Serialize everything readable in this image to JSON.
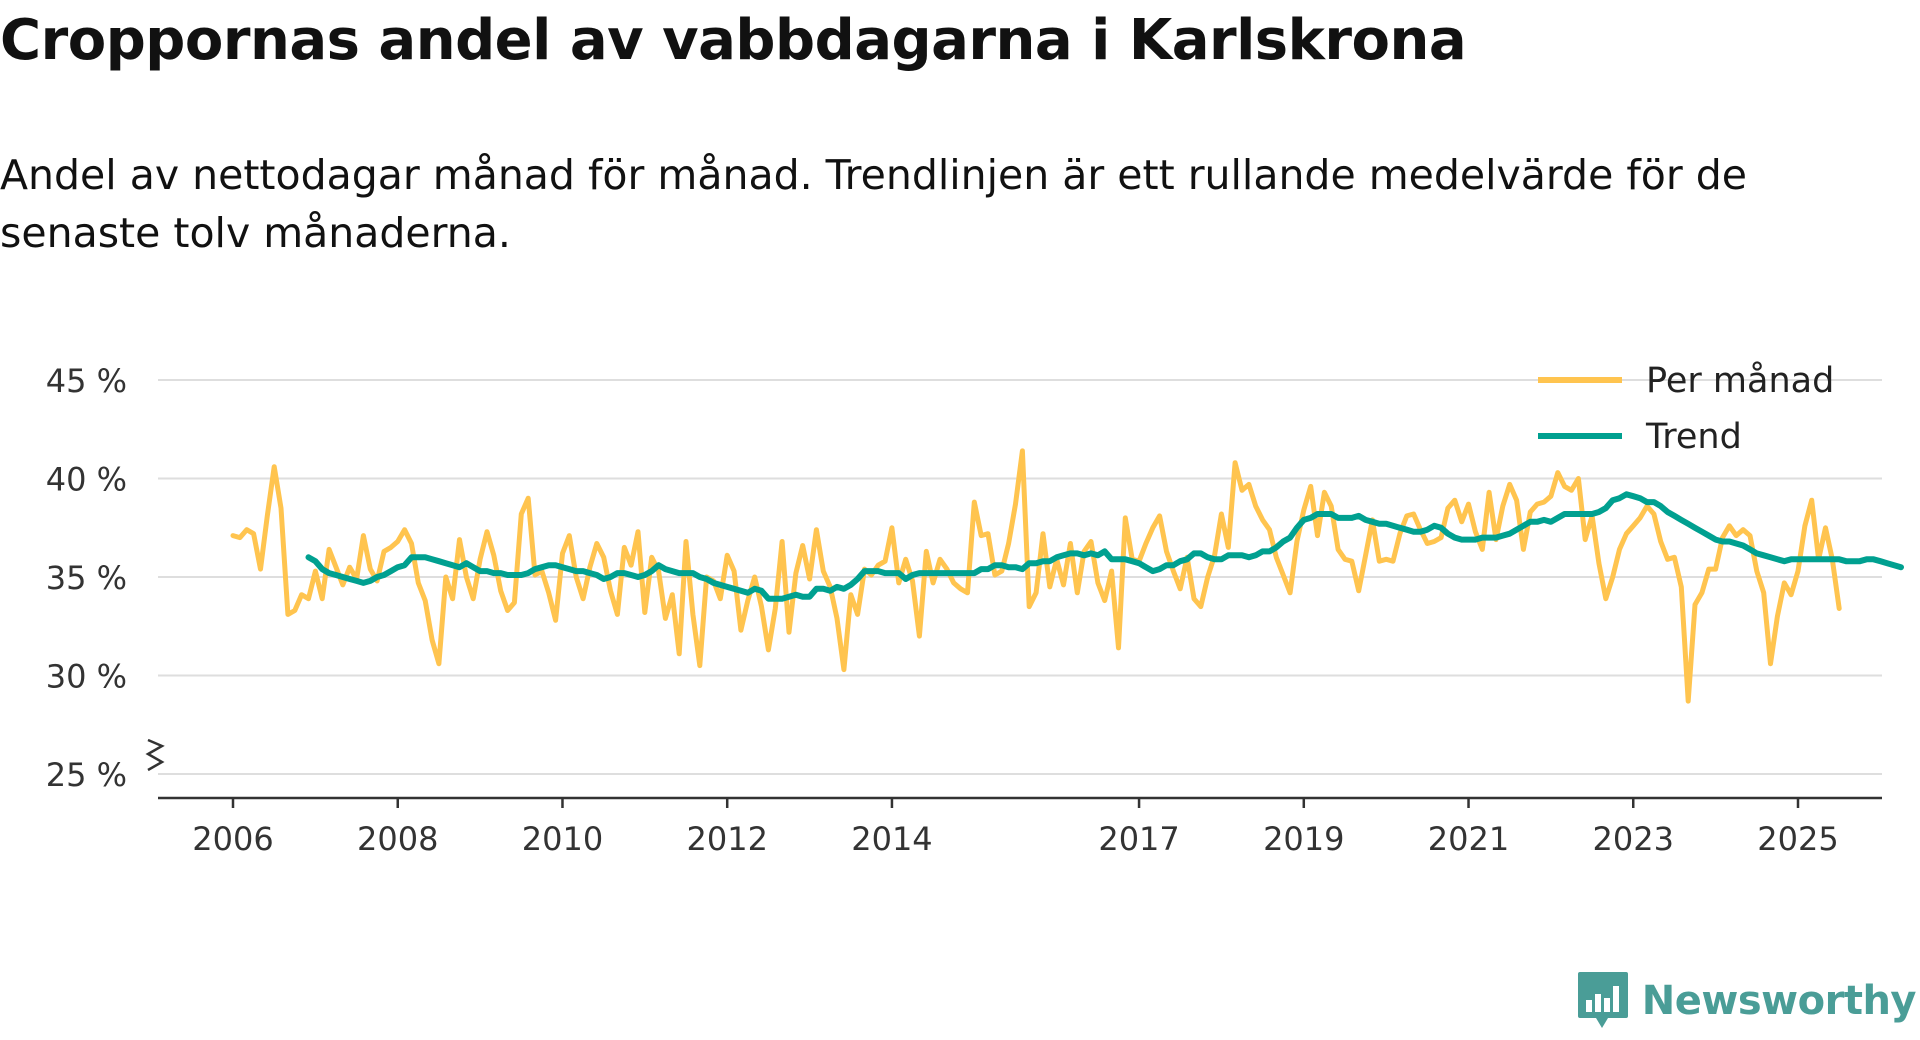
{
  "title": "Croppornas andel av vabbdagarna i Karlskrona",
  "subtitle": "Andel av nettodagar månad för månad. Trendlinjen är ett rullande medelvärde för de senaste tolv månaderna.",
  "brand": {
    "name": "Newsworthy",
    "color": "#4a9d97"
  },
  "colors": {
    "monthly": "#ffc44f",
    "trend": "#00a090",
    "grid": "#dedede",
    "axis": "#333333"
  },
  "chart_data": {
    "type": "line",
    "xlim": [
      2006.0,
      2026.0
    ],
    "ylim": [
      25,
      45
    ],
    "yticks": [
      {
        "value": 25,
        "label": "25 %"
      },
      {
        "value": 30,
        "label": "30 %"
      },
      {
        "value": 35,
        "label": "35 %"
      },
      {
        "value": 40,
        "label": "40 %"
      },
      {
        "value": 45,
        "label": "45 %"
      }
    ],
    "xticks": [
      {
        "value": 2006.0,
        "label": "2006"
      },
      {
        "value": 2008.0,
        "label": "2008"
      },
      {
        "value": 2010.0,
        "label": "2010"
      },
      {
        "value": 2012.0,
        "label": "2012"
      },
      {
        "value": 2014.0,
        "label": "2014"
      },
      {
        "value": 2017.0,
        "label": "2017"
      },
      {
        "value": 2019.0,
        "label": "2019"
      },
      {
        "value": 2021.0,
        "label": "2021"
      },
      {
        "value": 2023.0,
        "label": "2023"
      },
      {
        "value": 2025.0,
        "label": "2025"
      }
    ],
    "legend": {
      "position": "top-right",
      "entries": [
        "Per månad",
        "Trend"
      ]
    },
    "series": [
      {
        "name": "Per månad",
        "key": "monthly",
        "start": 2006.0,
        "values": [
          37.1,
          37.0,
          37.4,
          37.2,
          35.4,
          38.1,
          40.6,
          38.5,
          33.1,
          33.3,
          34.1,
          33.9,
          35.3,
          33.9,
          36.4,
          35.5,
          34.6,
          35.5,
          34.9,
          37.1,
          35.4,
          34.8,
          36.3,
          36.5,
          36.8,
          37.4,
          36.7,
          34.7,
          33.8,
          31.8,
          30.6,
          35.0,
          33.9,
          36.9,
          35.0,
          33.9,
          35.9,
          37.3,
          36.1,
          34.3,
          33.3,
          33.7,
          38.2,
          39.0,
          35.1,
          35.3,
          34.2,
          32.8,
          36.2,
          37.1,
          35.0,
          33.9,
          35.5,
          36.7,
          36.0,
          34.3,
          33.1,
          36.5,
          35.6,
          37.3,
          33.2,
          36.0,
          35.3,
          32.9,
          34.1,
          31.1,
          36.8,
          33.1,
          30.5,
          35.0,
          34.8,
          33.9,
          36.1,
          35.3,
          32.3,
          33.8,
          35.0,
          33.5,
          31.3,
          33.4,
          36.8,
          32.2,
          35.2,
          36.6,
          34.9,
          37.4,
          35.3,
          34.5,
          32.9,
          30.3,
          34.1,
          33.1,
          35.4,
          35.1,
          35.6,
          35.8,
          37.5,
          34.7,
          35.9,
          34.8,
          32.0,
          36.3,
          34.7,
          35.9,
          35.4,
          34.7,
          34.4,
          34.2,
          38.8,
          37.1,
          37.2,
          35.1,
          35.3,
          36.7,
          38.7,
          41.4,
          33.5,
          34.2,
          37.2,
          34.5,
          35.9,
          34.6,
          36.7,
          34.2,
          36.3,
          36.8,
          34.7,
          33.8,
          35.3,
          31.4,
          38.0,
          35.9,
          35.8,
          36.7,
          37.5,
          38.1,
          36.3,
          35.3,
          34.4,
          36.0,
          33.9,
          33.5,
          35.0,
          36.1,
          38.2,
          36.5,
          40.8,
          39.4,
          39.7,
          38.6,
          37.9,
          37.4,
          36.0,
          35.1,
          34.2,
          36.8,
          38.4,
          39.6,
          37.1,
          39.3,
          38.6,
          36.4,
          35.9,
          35.8,
          34.3,
          36.1,
          37.9,
          35.8,
          35.9,
          35.8,
          37.2,
          38.1,
          38.2,
          37.4,
          36.7,
          36.8,
          37.0,
          38.5,
          38.9,
          37.8,
          38.7,
          37.3,
          36.4,
          39.3,
          36.9,
          38.6,
          39.7,
          38.9,
          36.4,
          38.3,
          38.7,
          38.8,
          39.1,
          40.3,
          39.6,
          39.4,
          40.0,
          36.9,
          38.1,
          35.7,
          33.9,
          35.0,
          36.4,
          37.2,
          37.6,
          38.0,
          38.6,
          38.2,
          36.8,
          35.9,
          36.0,
          34.5,
          28.7,
          33.6,
          34.2,
          35.4,
          35.4,
          37.0,
          37.6,
          37.1,
          37.4,
          37.1,
          35.3,
          34.2,
          30.6,
          33.0,
          34.7,
          34.1,
          35.3,
          37.6,
          38.9,
          35.9,
          37.5,
          35.9,
          33.4
        ]
      },
      {
        "name": "Trend",
        "key": "trend",
        "start": 2006.9167,
        "values": [
          36.0,
          35.8,
          35.4,
          35.2,
          35.1,
          35.0,
          34.9,
          34.8,
          34.7,
          34.8,
          35.0,
          35.1,
          35.3,
          35.5,
          35.6,
          36.0,
          36.0,
          36.0,
          35.9,
          35.8,
          35.7,
          35.6,
          35.5,
          35.7,
          35.5,
          35.3,
          35.3,
          35.2,
          35.2,
          35.1,
          35.1,
          35.1,
          35.2,
          35.4,
          35.5,
          35.6,
          35.6,
          35.5,
          35.4,
          35.3,
          35.3,
          35.2,
          35.1,
          34.9,
          35.0,
          35.2,
          35.2,
          35.1,
          35.0,
          35.1,
          35.3,
          35.6,
          35.4,
          35.3,
          35.2,
          35.2,
          35.2,
          35.0,
          34.9,
          34.7,
          34.6,
          34.5,
          34.4,
          34.3,
          34.2,
          34.4,
          34.3,
          33.9,
          33.9,
          33.9,
          34.0,
          34.1,
          34.0,
          34.0,
          34.4,
          34.4,
          34.3,
          34.5,
          34.4,
          34.6,
          34.9,
          35.3,
          35.3,
          35.3,
          35.2,
          35.2,
          35.2,
          34.9,
          35.1,
          35.2,
          35.2,
          35.2,
          35.2,
          35.2,
          35.2,
          35.2,
          35.2,
          35.2,
          35.4,
          35.4,
          35.6,
          35.6,
          35.5,
          35.5,
          35.4,
          35.7,
          35.7,
          35.8,
          35.8,
          36.0,
          36.1,
          36.2,
          36.2,
          36.1,
          36.2,
          36.1,
          36.3,
          35.9,
          35.9,
          35.9,
          35.8,
          35.7,
          35.5,
          35.3,
          35.4,
          35.6,
          35.6,
          35.8,
          35.9,
          36.2,
          36.2,
          36.0,
          35.9,
          35.9,
          36.1,
          36.1,
          36.1,
          36.0,
          36.1,
          36.3,
          36.3,
          36.5,
          36.8,
          37.0,
          37.5,
          37.9,
          38.0,
          38.2,
          38.2,
          38.2,
          38.0,
          38.0,
          38.0,
          38.1,
          37.9,
          37.8,
          37.7,
          37.7,
          37.6,
          37.5,
          37.4,
          37.3,
          37.3,
          37.4,
          37.6,
          37.5,
          37.2,
          37.0,
          36.9,
          36.9,
          36.9,
          37.0,
          37.0,
          37.0,
          37.1,
          37.2,
          37.4,
          37.6,
          37.8,
          37.8,
          37.9,
          37.8,
          38.0,
          38.2,
          38.2,
          38.2,
          38.2,
          38.2,
          38.3,
          38.5,
          38.9,
          39.0,
          39.2,
          39.1,
          39.0,
          38.8,
          38.8,
          38.6,
          38.3,
          38.1,
          37.9,
          37.7,
          37.5,
          37.3,
          37.1,
          36.9,
          36.8,
          36.8,
          36.7,
          36.6,
          36.4,
          36.2,
          36.1,
          36.0,
          35.9,
          35.8,
          35.9,
          35.9,
          35.9,
          35.9,
          35.9,
          35.9,
          35.9,
          35.9,
          35.8,
          35.8,
          35.8,
          35.9,
          35.9,
          35.8,
          35.7,
          35.6,
          35.5
        ]
      }
    ]
  }
}
